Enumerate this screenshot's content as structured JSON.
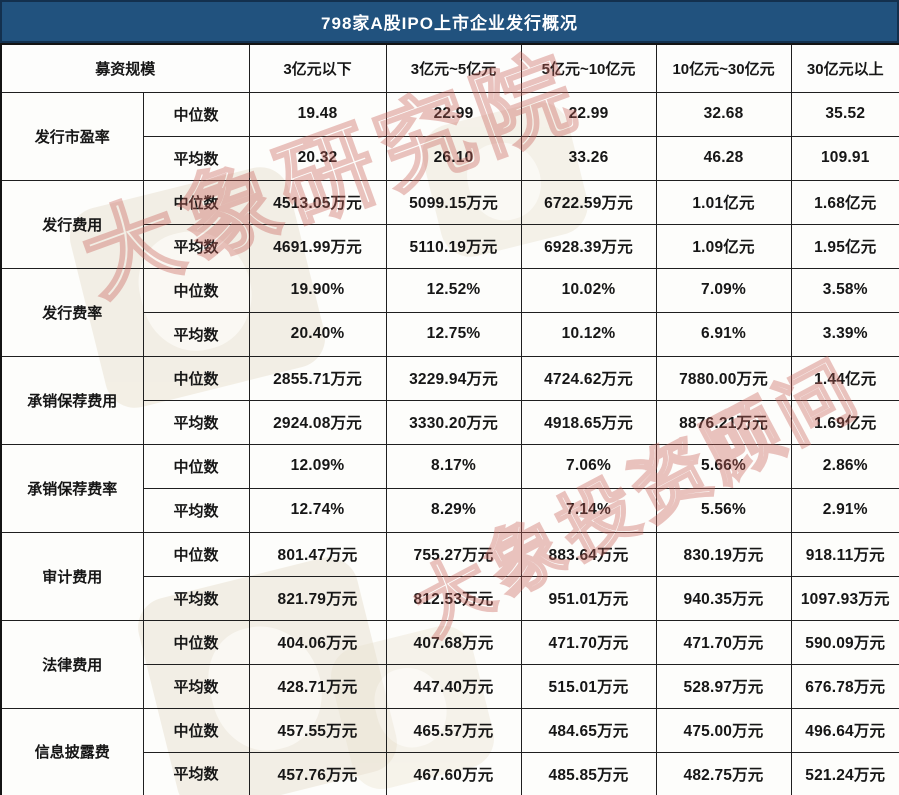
{
  "title": "798家A股IPO上市企业发行概况",
  "table": {
    "corner_header": "募资规模",
    "col_headers": [
      "3亿元以下",
      "3亿元~5亿元",
      "5亿元~10亿元",
      "10亿元~30亿元",
      "30亿元以上"
    ],
    "stat_labels": {
      "median": "中位数",
      "mean": "平均数"
    },
    "groups": [
      {
        "label": "发行市盈率",
        "median": [
          "19.48",
          "22.99",
          "22.99",
          "32.68",
          "35.52"
        ],
        "mean": [
          "20.32",
          "26.10",
          "33.26",
          "46.28",
          "109.91"
        ]
      },
      {
        "label": "发行费用",
        "median": [
          "4513.05万元",
          "5099.15万元",
          "6722.59万元",
          "1.01亿元",
          "1.68亿元"
        ],
        "mean": [
          "4691.99万元",
          "5110.19万元",
          "6928.39万元",
          "1.09亿元",
          "1.95亿元"
        ]
      },
      {
        "label": "发行费率",
        "median": [
          "19.90%",
          "12.52%",
          "10.02%",
          "7.09%",
          "3.58%"
        ],
        "mean": [
          "20.40%",
          "12.75%",
          "10.12%",
          "6.91%",
          "3.39%"
        ]
      },
      {
        "label": "承销保荐费用",
        "median": [
          "2855.71万元",
          "3229.94万元",
          "4724.62万元",
          "7880.00万元",
          "1.44亿元"
        ],
        "mean": [
          "2924.08万元",
          "3330.20万元",
          "4918.65万元",
          "8876.21万元",
          "1.69亿元"
        ]
      },
      {
        "label": "承销保荐费率",
        "median": [
          "12.09%",
          "8.17%",
          "7.06%",
          "5.66%",
          "2.86%"
        ],
        "mean": [
          "12.74%",
          "8.29%",
          "7.14%",
          "5.56%",
          "2.91%"
        ]
      },
      {
        "label": "审计费用",
        "median": [
          "801.47万元",
          "755.27万元",
          "883.64万元",
          "830.19万元",
          "918.11万元"
        ],
        "mean": [
          "821.79万元",
          "812.53万元",
          "951.01万元",
          "940.35万元",
          "1097.93万元"
        ]
      },
      {
        "label": "法律费用",
        "median": [
          "404.06万元",
          "407.68万元",
          "471.70万元",
          "471.70万元",
          "590.09万元"
        ],
        "mean": [
          "428.71万元",
          "447.40万元",
          "515.01万元",
          "528.97万元",
          "676.78万元"
        ]
      },
      {
        "label": "信息披露费",
        "median": [
          "457.55万元",
          "465.57万元",
          "484.65万元",
          "475.00万元",
          "496.64万元"
        ],
        "mean": [
          "457.76万元",
          "467.60万元",
          "485.85万元",
          "482.75万元",
          "521.24万元"
        ]
      }
    ]
  },
  "watermarks": {
    "research": "大象研究院",
    "advisor": "大象投资顾问"
  },
  "colors": {
    "title_bg": "#21527E",
    "title_border": "#13304E",
    "title_text": "#FFFFFF",
    "table_border": "#1F1F1F",
    "cell_text": "#161616",
    "watermark_pink": "#C8605A",
    "watermark_beige": "#E9E1D0"
  }
}
